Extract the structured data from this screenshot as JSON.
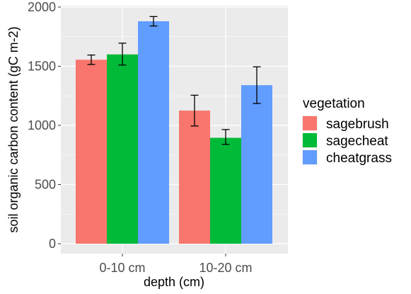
{
  "chart_data": {
    "type": "bar",
    "xlabel": "depth (cm)",
    "ylabel": "soil organic carbon content (gC m-2)",
    "categories": [
      "0-10 cm",
      "10-20 cm"
    ],
    "ylim": [
      0,
      2000
    ],
    "yticks": [
      0,
      500,
      1000,
      1500,
      2000
    ],
    "grid": true,
    "legend": {
      "title": "vegetation",
      "placement": "right"
    },
    "series": [
      {
        "name": "sagebrush",
        "color": "#F8766D",
        "values": [
          1555,
          1125
        ],
        "error_low": [
          1515,
          995
        ],
        "error_high": [
          1595,
          1255
        ]
      },
      {
        "name": "sagecheat",
        "color": "#00BA38",
        "values": [
          1600,
          895
        ],
        "error_low": [
          1510,
          840
        ],
        "error_high": [
          1695,
          965
        ]
      },
      {
        "name": "cheatgrass",
        "color": "#619CFF",
        "values": [
          1880,
          1340
        ],
        "error_low": [
          1840,
          1185
        ],
        "error_high": [
          1920,
          1495
        ]
      }
    ]
  }
}
